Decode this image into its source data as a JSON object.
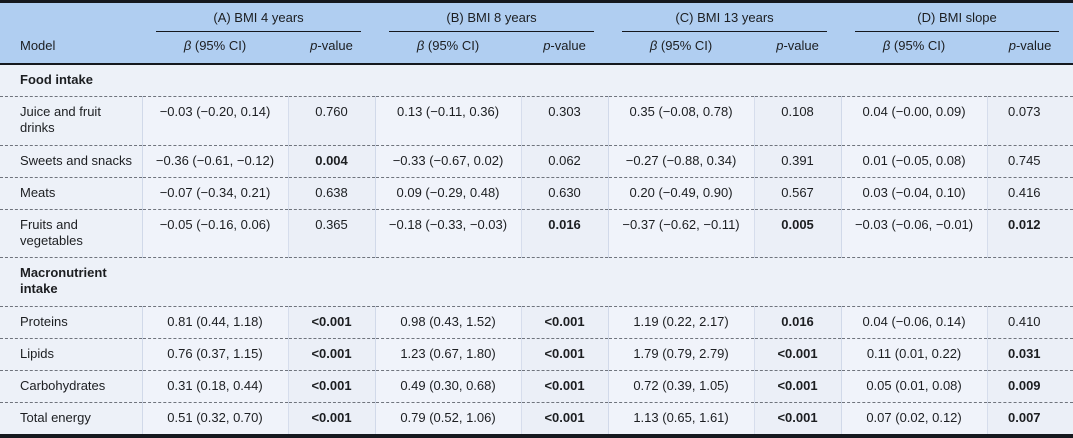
{
  "table": {
    "headers": {
      "model": "Model",
      "beta_symbol": "β",
      "beta_rest": " (95% CI)",
      "p_symbol": "p",
      "p_rest": "-value",
      "groups": [
        "(A) BMI 4 years",
        "(B) BMI 8 years",
        "(C) BMI 13 years",
        "(D) BMI slope"
      ]
    },
    "colors": {
      "header_bg": "#b0cef1",
      "body_bg": "#edf1f8",
      "rule_dark": "#15181e"
    },
    "sections": [
      {
        "title": "Food intake",
        "rows": [
          {
            "model": "Juice and fruit drinks",
            "cells": [
              {
                "beta": "−0.03 (−0.20, 0.14)",
                "p": "0.760",
                "p_bold": false
              },
              {
                "beta": "0.13 (−0.11, 0.36)",
                "p": "0.303",
                "p_bold": false
              },
              {
                "beta": "0.35 (−0.08, 0.78)",
                "p": "0.108",
                "p_bold": false
              },
              {
                "beta": "0.04 (−0.00, 0.09)",
                "p": "0.073",
                "p_bold": false
              }
            ]
          },
          {
            "model": "Sweets and snacks",
            "cells": [
              {
                "beta": "−0.36 (−0.61, −0.12)",
                "p": "0.004",
                "p_bold": true
              },
              {
                "beta": "−0.33 (−0.67, 0.02)",
                "p": "0.062",
                "p_bold": false
              },
              {
                "beta": "−0.27 (−0.88, 0.34)",
                "p": "0.391",
                "p_bold": false
              },
              {
                "beta": "0.01 (−0.05, 0.08)",
                "p": "0.745",
                "p_bold": false
              }
            ]
          },
          {
            "model": "Meats",
            "cells": [
              {
                "beta": "−0.07 (−0.34, 0.21)",
                "p": "0.638",
                "p_bold": false
              },
              {
                "beta": "0.09 (−0.29, 0.48)",
                "p": "0.630",
                "p_bold": false
              },
              {
                "beta": "0.20 (−0.49, 0.90)",
                "p": "0.567",
                "p_bold": false
              },
              {
                "beta": "0.03 (−0.04, 0.10)",
                "p": "0.416",
                "p_bold": false
              }
            ]
          },
          {
            "model": "Fruits and vegetables",
            "cells": [
              {
                "beta": "−0.05 (−0.16, 0.06)",
                "p": "0.365",
                "p_bold": false
              },
              {
                "beta": "−0.18 (−0.33, −0.03)",
                "p": "0.016",
                "p_bold": true
              },
              {
                "beta": "−0.37 (−0.62, −0.11)",
                "p": "0.005",
                "p_bold": true
              },
              {
                "beta": "−0.03 (−0.06, −0.01)",
                "p": "0.012",
                "p_bold": true
              }
            ]
          }
        ]
      },
      {
        "title": "Macronutrient intake",
        "rows": [
          {
            "model": "Proteins",
            "cells": [
              {
                "beta": "0.81 (0.44, 1.18)",
                "p": "<0.001",
                "p_bold": true
              },
              {
                "beta": "0.98 (0.43, 1.52)",
                "p": "<0.001",
                "p_bold": true
              },
              {
                "beta": "1.19 (0.22, 2.17)",
                "p": "0.016",
                "p_bold": true
              },
              {
                "beta": "0.04 (−0.06, 0.14)",
                "p": "0.410",
                "p_bold": false
              }
            ]
          },
          {
            "model": "Lipids",
            "cells": [
              {
                "beta": "0.76 (0.37, 1.15)",
                "p": "<0.001",
                "p_bold": true
              },
              {
                "beta": "1.23 (0.67, 1.80)",
                "p": "<0.001",
                "p_bold": true
              },
              {
                "beta": "1.79 (0.79, 2.79)",
                "p": "<0.001",
                "p_bold": true
              },
              {
                "beta": "0.11 (0.01, 0.22)",
                "p": "0.031",
                "p_bold": true
              }
            ]
          },
          {
            "model": "Carbohydrates",
            "cells": [
              {
                "beta": "0.31 (0.18, 0.44)",
                "p": "<0.001",
                "p_bold": true
              },
              {
                "beta": "0.49 (0.30, 0.68)",
                "p": "<0.001",
                "p_bold": true
              },
              {
                "beta": "0.72 (0.39, 1.05)",
                "p": "<0.001",
                "p_bold": true
              },
              {
                "beta": "0.05 (0.01, 0.08)",
                "p": "0.009",
                "p_bold": true
              }
            ]
          },
          {
            "model": "Total energy",
            "cells": [
              {
                "beta": "0.51 (0.32, 0.70)",
                "p": "<0.001",
                "p_bold": true
              },
              {
                "beta": "0.79 (0.52, 1.06)",
                "p": "<0.001",
                "p_bold": true
              },
              {
                "beta": "1.13 (0.65, 1.61)",
                "p": "<0.001",
                "p_bold": true
              },
              {
                "beta": "0.07 (0.02, 0.12)",
                "p": "0.007",
                "p_bold": true
              }
            ]
          }
        ]
      }
    ]
  }
}
